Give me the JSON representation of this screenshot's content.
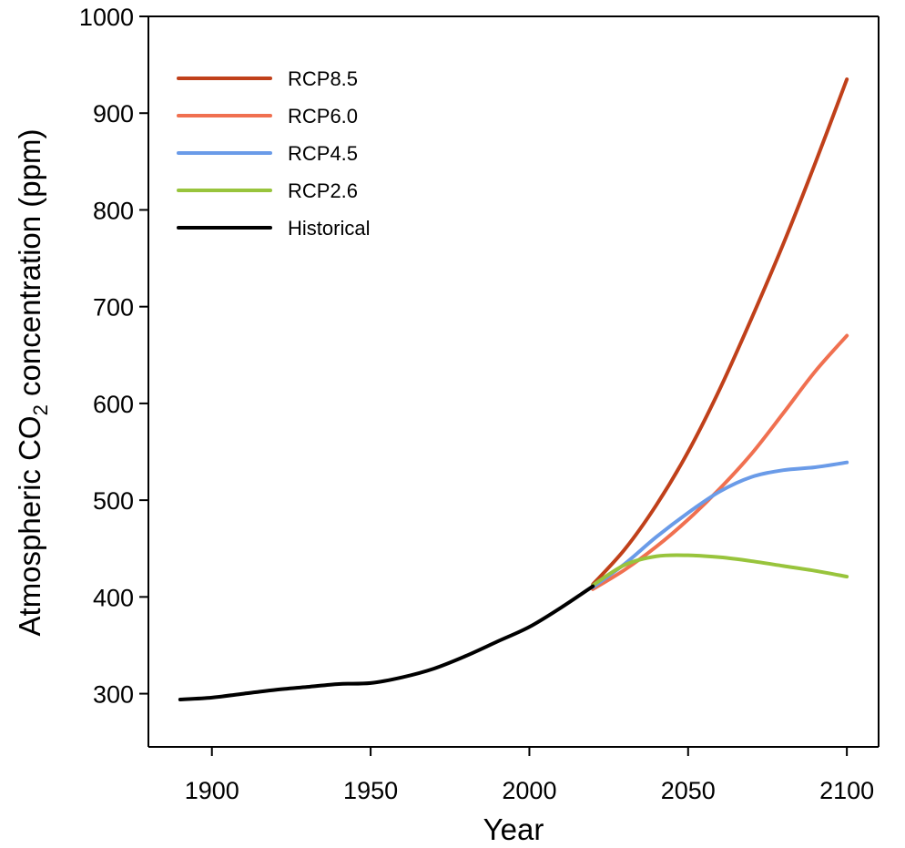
{
  "chart_data": {
    "type": "line",
    "title": "",
    "xlabel": "Year",
    "ylabel_main": "Atmospheric CO",
    "ylabel_sub": "2",
    "ylabel_tail": " concentration (ppm)",
    "xlim": [
      1880,
      2110
    ],
    "ylim": [
      245,
      1000
    ],
    "xticks": [
      1900,
      1950,
      2000,
      2050,
      2100
    ],
    "yticks": [
      300,
      400,
      500,
      600,
      700,
      800,
      900,
      1000
    ],
    "legend_position": "top-left",
    "grid": false,
    "series": [
      {
        "name": "RCP8.5",
        "color": "#c0401a",
        "x": [
          2020,
          2030,
          2040,
          2050,
          2060,
          2070,
          2080,
          2090,
          2100
        ],
        "y": [
          413,
          449,
          495,
          550,
          615,
          688,
          765,
          848,
          935
        ]
      },
      {
        "name": "RCP6.0",
        "color": "#f07050",
        "x": [
          2020,
          2030,
          2040,
          2050,
          2060,
          2070,
          2080,
          2090,
          2100
        ],
        "y": [
          408,
          428,
          452,
          480,
          512,
          548,
          590,
          633,
          670
        ]
      },
      {
        "name": "RCP4.5",
        "color": "#6a9be8",
        "x": [
          2020,
          2030,
          2040,
          2050,
          2060,
          2070,
          2080,
          2090,
          2100
        ],
        "y": [
          410,
          434,
          462,
          487,
          509,
          524,
          531,
          534,
          539
        ]
      },
      {
        "name": "RCP2.6",
        "color": "#98c43c",
        "x": [
          2020,
          2030,
          2040,
          2050,
          2060,
          2070,
          2080,
          2090,
          2100
        ],
        "y": [
          412,
          433,
          442,
          443,
          441,
          437,
          432,
          427,
          421
        ]
      },
      {
        "name": "Historical",
        "color": "#000000",
        "x": [
          1890,
          1900,
          1910,
          1920,
          1930,
          1940,
          1950,
          1960,
          1970,
          1980,
          1990,
          2000,
          2010,
          2020
        ],
        "y": [
          294,
          296,
          300,
          304,
          307,
          310,
          311,
          317,
          326,
          339,
          354,
          369,
          389,
          411
        ]
      }
    ]
  }
}
